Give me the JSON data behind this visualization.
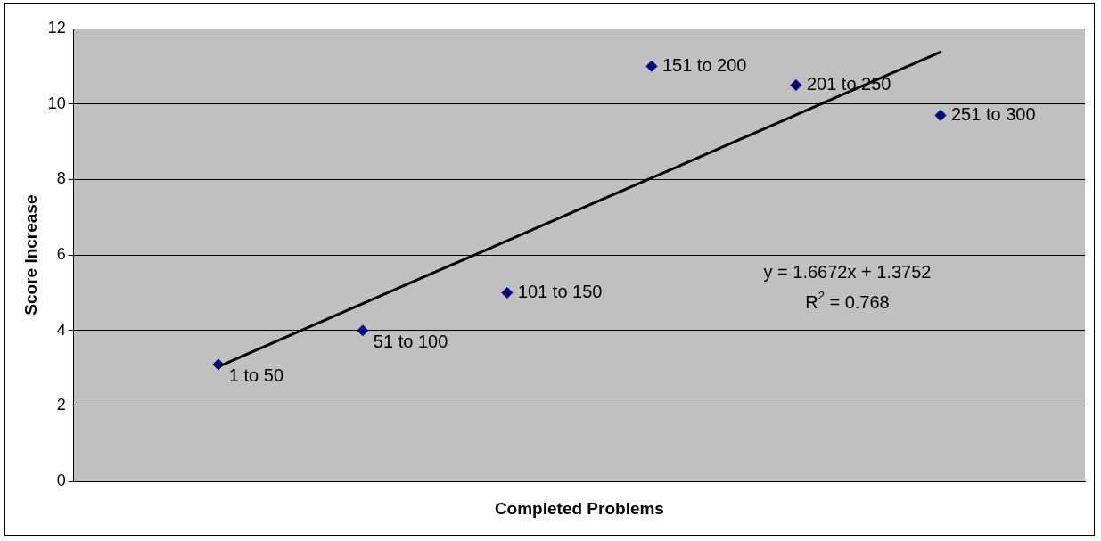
{
  "chart_data": {
    "type": "scatter",
    "xlabel": "Completed Problems",
    "ylabel": "Score Increase",
    "categories": [
      null,
      null,
      null,
      null,
      null,
      null
    ],
    "ylim": [
      0,
      12
    ],
    "yticks": [
      0,
      2,
      4,
      6,
      8,
      10,
      12
    ],
    "grid": "y",
    "legend": false,
    "tick_labels": "y",
    "marker": "diamond",
    "series": [
      {
        "type": "scatter",
        "color": "#000080",
        "values": [
          3.1,
          4.0,
          5.0,
          11.0,
          10.5,
          9.7
        ],
        "value_labels": [
          "1 to 50",
          "51 to 100",
          "101 to 150",
          "151 to 200",
          "201 to 250",
          "251 to 300"
        ]
      },
      {
        "type": "line",
        "color": "#000000",
        "values": [
          3.04,
          4.71,
          6.38,
          8.04,
          9.71,
          11.38
        ],
        "marker": "none",
        "line_style": "solid"
      }
    ],
    "annotations": [
      "y = 1.6672x + 1.3752",
      "R$^{2}$ = 0.768"
    ]
  }
}
